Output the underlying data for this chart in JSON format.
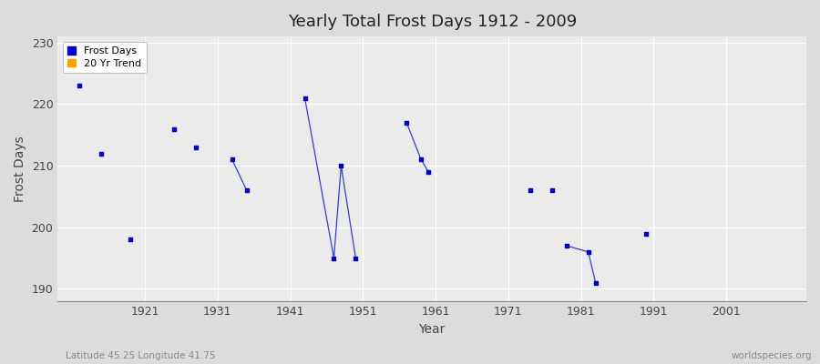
{
  "title": "Yearly Total Frost Days 1912 - 2009",
  "xlabel": "Year",
  "ylabel": "Frost Days",
  "subtitle": "Latitude 45.25 Longitude 41.75",
  "watermark": "worldspecies.org",
  "ylim": [
    188,
    231
  ],
  "xlim": [
    1909,
    2012
  ],
  "yticks": [
    190,
    200,
    210,
    220,
    230
  ],
  "xticks": [
    1921,
    1931,
    1941,
    1951,
    1961,
    1971,
    1981,
    1991,
    2001
  ],
  "background_color": "#dcdcdc",
  "plot_bg_color": "#ebebeb",
  "grid_color": "#ffffff",
  "data_color": "#0000cc",
  "trend_color": "#ffa500",
  "connected_groups": [
    [
      [
        1912,
        223
      ]
    ],
    [
      [
        1915,
        212
      ]
    ],
    [
      [
        1919,
        198
      ]
    ],
    [
      [
        1925,
        216
      ]
    ],
    [
      [
        1928,
        213
      ]
    ],
    [
      [
        1933,
        211
      ],
      [
        1935,
        206
      ]
    ],
    [
      [
        1943,
        221
      ],
      [
        1947,
        195
      ],
      [
        1948,
        210
      ],
      [
        1950,
        195
      ]
    ],
    [
      [
        1957,
        217
      ],
      [
        1959,
        211
      ],
      [
        1960,
        209
      ]
    ],
    [
      [
        1974,
        206
      ]
    ],
    [
      [
        1977,
        206
      ]
    ],
    [
      [
        1979,
        197
      ],
      [
        1982,
        196
      ],
      [
        1983,
        191
      ]
    ],
    [
      [
        1990,
        199
      ]
    ]
  ]
}
